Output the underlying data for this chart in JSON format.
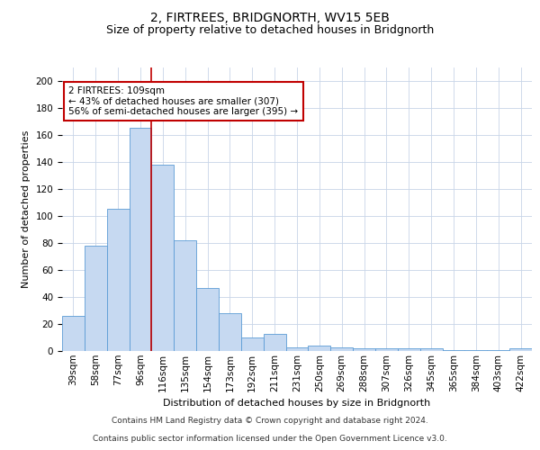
{
  "title": "2, FIRTREES, BRIDGNORTH, WV15 5EB",
  "subtitle": "Size of property relative to detached houses in Bridgnorth",
  "xlabel": "Distribution of detached houses by size in Bridgnorth",
  "ylabel": "Number of detached properties",
  "bar_values": [
    26,
    78,
    105,
    165,
    138,
    82,
    47,
    28,
    10,
    13,
    3,
    4,
    3,
    2,
    2,
    2,
    2,
    1,
    1,
    1,
    2
  ],
  "categories": [
    "39sqm",
    "58sqm",
    "77sqm",
    "96sqm",
    "116sqm",
    "135sqm",
    "154sqm",
    "173sqm",
    "192sqm",
    "211sqm",
    "231sqm",
    "250sqm",
    "269sqm",
    "288sqm",
    "307sqm",
    "326sqm",
    "345sqm",
    "365sqm",
    "384sqm",
    "403sqm",
    "422sqm"
  ],
  "bar_color": "#c6d9f1",
  "bar_edge_color": "#5b9bd5",
  "vline_bin": 4,
  "vline_color": "#c00000",
  "annotation_text": "2 FIRTREES: 109sqm\n← 43% of detached houses are smaller (307)\n56% of semi-detached houses are larger (395) →",
  "annotation_box_color": "#ffffff",
  "annotation_box_edge_color": "#c00000",
  "ylim": [
    0,
    210
  ],
  "yticks": [
    0,
    20,
    40,
    60,
    80,
    100,
    120,
    140,
    160,
    180,
    200
  ],
  "footer_line1": "Contains HM Land Registry data © Crown copyright and database right 2024.",
  "footer_line2": "Contains public sector information licensed under the Open Government Licence v3.0.",
  "title_fontsize": 10,
  "subtitle_fontsize": 9,
  "axis_label_fontsize": 8,
  "tick_fontsize": 7.5,
  "annotation_fontsize": 7.5,
  "footer_fontsize": 6.5,
  "background_color": "#ffffff",
  "grid_color": "#c8d4e8"
}
